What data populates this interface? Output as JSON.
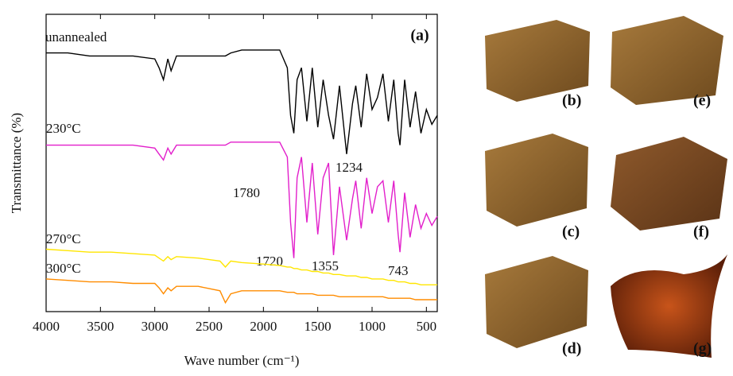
{
  "chart_data": {
    "type": "line",
    "xlabel": "Wave number (cm⁻¹)",
    "ylabel": "Transmittance (%)",
    "panel_label": "(a)",
    "xlim": [
      4000,
      400
    ],
    "ylim": [
      0,
      100
    ],
    "xticks": [
      4000,
      3500,
      3000,
      2500,
      2000,
      1500,
      1000,
      500
    ],
    "x": [
      4000,
      3800,
      3600,
      3400,
      3200,
      3000,
      2960,
      2920,
      2880,
      2850,
      2800,
      2600,
      2400,
      2350,
      2300,
      2200,
      2000,
      1850,
      1780,
      1750,
      1720,
      1690,
      1650,
      1600,
      1550,
      1500,
      1450,
      1400,
      1355,
      1300,
      1234,
      1180,
      1150,
      1100,
      1050,
      1000,
      950,
      900,
      850,
      800,
      760,
      743,
      700,
      650,
      600,
      550,
      500,
      450,
      400
    ],
    "series": [
      {
        "name": "unannealed",
        "color": "#000000",
        "values": [
          87,
          87,
          86,
          86,
          86,
          85,
          82,
          78,
          85,
          81,
          86,
          86,
          86,
          86,
          87,
          88,
          88,
          88,
          82,
          66,
          60,
          78,
          82,
          64,
          82,
          62,
          78,
          66,
          58,
          76,
          53,
          70,
          76,
          62,
          80,
          68,
          72,
          80,
          64,
          78,
          60,
          56,
          78,
          62,
          74,
          60,
          68,
          63,
          66
        ]
      },
      {
        "name": "230°C",
        "color": "#e21fcb",
        "values": [
          56,
          56,
          56,
          56,
          56,
          55,
          53,
          51,
          55,
          53,
          56,
          56,
          56,
          56,
          57,
          57,
          57,
          57,
          52,
          30,
          18,
          45,
          52,
          30,
          50,
          26,
          45,
          50,
          19,
          42,
          24,
          38,
          44,
          28,
          45,
          33,
          42,
          44,
          30,
          44,
          26,
          20,
          40,
          25,
          36,
          28,
          33,
          29,
          32
        ]
      },
      {
        "name": "270°C",
        "color": "#ffe600",
        "values": [
          21,
          20.5,
          20,
          20,
          19.5,
          19,
          18,
          17,
          18.5,
          17.5,
          18.5,
          18,
          17,
          15,
          17,
          16.5,
          16,
          15.5,
          15,
          15,
          14.5,
          14.5,
          14,
          14,
          13.5,
          13.5,
          13,
          13,
          12.5,
          12.5,
          12,
          12,
          12,
          11.5,
          11.5,
          11,
          11,
          11,
          10.5,
          10.5,
          10,
          10,
          10,
          9.5,
          9.5,
          9,
          9,
          9,
          9
        ]
      },
      {
        "name": "300°C",
        "color": "#ff8c00",
        "values": [
          11,
          10.5,
          10,
          10,
          9.5,
          9.5,
          8,
          6,
          8,
          7,
          8.5,
          8.5,
          7,
          3,
          6,
          7,
          7,
          7,
          6.5,
          6.5,
          6.5,
          6,
          6,
          6,
          6,
          5.5,
          5.5,
          5.5,
          5.5,
          5,
          5,
          5,
          5,
          5,
          5,
          5,
          5,
          5,
          4.5,
          4.5,
          4.5,
          4.5,
          4.5,
          4.5,
          4,
          4,
          4,
          4,
          4
        ]
      }
    ],
    "annotations": [
      "1780",
      "1234",
      "1720",
      "1355",
      "743"
    ]
  },
  "photos": {
    "labels": [
      "(b)",
      "(c)",
      "(d)",
      "(e)",
      "(f)",
      "(g)"
    ]
  }
}
